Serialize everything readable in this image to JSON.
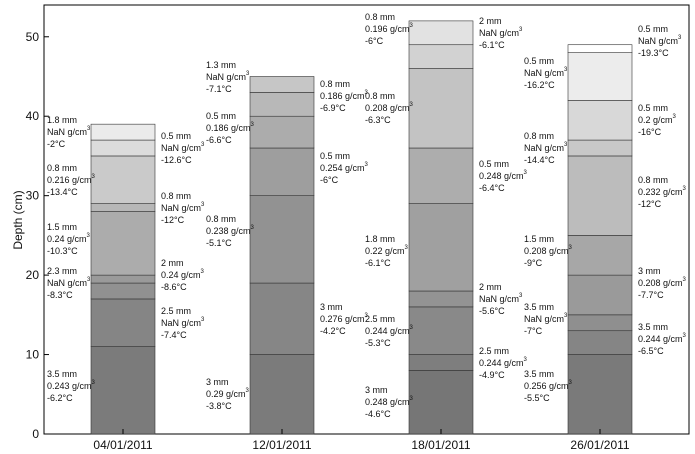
{
  "chart_data": {
    "type": "bar",
    "stacked": true,
    "ylabel": "Depth (cm)",
    "ylim": [
      0,
      54
    ],
    "yticks": [
      0,
      10,
      20,
      30,
      40,
      50
    ],
    "categories": [
      "04/01/2011",
      "12/01/2011",
      "18/01/2011",
      "26/01/2011"
    ],
    "profiles": [
      {
        "date": "04/01/2011",
        "layers": [
          {
            "top": 11,
            "fill": "#7b7b7b"
          },
          {
            "top": 17,
            "fill": "#858585"
          },
          {
            "top": 19,
            "fill": "#919191"
          },
          {
            "top": 20,
            "fill": "#9a9a9a"
          },
          {
            "top": 28,
            "fill": "#acacac"
          },
          {
            "top": 29,
            "fill": "#b7b7b7"
          },
          {
            "top": 35,
            "fill": "#cacaca"
          },
          {
            "top": 37,
            "fill": "#dcdcdc"
          },
          {
            "top": 39,
            "fill": "#ebebeb"
          }
        ],
        "left_labels": [
          {
            "y": 6,
            "lines": [
              "3.5 mm",
              "0.243 g/cm",
              "-6.2°C"
            ]
          },
          {
            "y": 19,
            "lines": [
              "2.3 mm",
              "NaN g/cm",
              "-8.3°C"
            ]
          },
          {
            "y": 24.5,
            "lines": [
              "1.5 mm",
              "0.24 g/cm",
              "-10.3°C"
            ]
          },
          {
            "y": 32,
            "lines": [
              "0.8 mm",
              "0.216 g/cm",
              "-13.4°C"
            ]
          },
          {
            "y": 38,
            "lines": [
              "1.8 mm",
              "NaN g/cm",
              "-2°C"
            ]
          }
        ],
        "right_labels": [
          {
            "y": 14,
            "lines": [
              "2.5 mm",
              "NaN g/cm",
              "-7.4°C"
            ]
          },
          {
            "y": 20,
            "lines": [
              "2 mm",
              "0.24 g/cm",
              "-8.6°C"
            ]
          },
          {
            "y": 28.5,
            "lines": [
              "0.8 mm",
              "NaN g/cm",
              "-12°C"
            ]
          },
          {
            "y": 36,
            "lines": [
              "0.5 mm",
              "NaN g/cm",
              "-12.6°C"
            ]
          }
        ]
      },
      {
        "date": "12/01/2011",
        "layers": [
          {
            "top": 10,
            "fill": "#7b7b7b"
          },
          {
            "top": 19,
            "fill": "#868686"
          },
          {
            "top": 30,
            "fill": "#929292"
          },
          {
            "top": 36,
            "fill": "#9e9e9e"
          },
          {
            "top": 40,
            "fill": "#acacac"
          },
          {
            "top": 43,
            "fill": "#b8b8b8"
          },
          {
            "top": 45,
            "fill": "#c6c6c6"
          }
        ],
        "left_labels": [
          {
            "y": 5,
            "lines": [
              "3 mm",
              "0.29 g/cm",
              "-3.8°C"
            ]
          },
          {
            "y": 25.5,
            "lines": [
              "0.8 mm",
              "0.238 g/cm",
              "-5.1°C"
            ]
          },
          {
            "y": 38.5,
            "lines": [
              "0.5 mm",
              "0.186 g/cm",
              "-6.6°C"
            ]
          },
          {
            "y": 45,
            "lines": [
              "1.3 mm",
              "NaN g/cm",
              "-7.1°C"
            ]
          }
        ],
        "right_labels": [
          {
            "y": 14.5,
            "lines": [
              "3 mm",
              "0.276 g/cm",
              "-4.2°C"
            ]
          },
          {
            "y": 33.5,
            "lines": [
              "0.5 mm",
              "0.254 g/cm",
              "-6°C"
            ]
          },
          {
            "y": 42.5,
            "lines": [
              "0.8 mm",
              "0.186 g/cm",
              "-6.9°C"
            ]
          }
        ]
      },
      {
        "date": "18/01/2011",
        "layers": [
          {
            "top": 8,
            "fill": "#767676"
          },
          {
            "top": 10,
            "fill": "#7e7e7e"
          },
          {
            "top": 16,
            "fill": "#898989"
          },
          {
            "top": 18,
            "fill": "#939393"
          },
          {
            "top": 29,
            "fill": "#a0a0a0"
          },
          {
            "top": 36,
            "fill": "#adadad"
          },
          {
            "top": 46,
            "fill": "#c3c3c3"
          },
          {
            "top": 49,
            "fill": "#d2d2d2"
          },
          {
            "top": 52,
            "fill": "#e2e2e2"
          }
        ],
        "left_labels": [
          {
            "y": 4,
            "lines": [
              "3 mm",
              "0.248 g/cm",
              "-4.6°C"
            ]
          },
          {
            "y": 13,
            "lines": [
              "2.5 mm",
              "0.244 g/cm",
              "-5.3°C"
            ]
          },
          {
            "y": 23,
            "lines": [
              "1.8 mm",
              "0.22 g/cm",
              "-6.1°C"
            ]
          },
          {
            "y": 41,
            "lines": [
              "0.8 mm",
              "0.208 g/cm",
              "-6.3°C"
            ]
          },
          {
            "y": 51,
            "lines": [
              "0.8 mm",
              "0.196 g/cm",
              "-6°C"
            ]
          }
        ],
        "right_labels": [
          {
            "y": 9,
            "lines": [
              "2.5 mm",
              "0.244 g/cm",
              "-4.9°C"
            ]
          },
          {
            "y": 17,
            "lines": [
              "2 mm",
              "NaN g/cm",
              "-5.6°C"
            ]
          },
          {
            "y": 32.5,
            "lines": [
              "0.5 mm",
              "0.248 g/cm",
              "-6.4°C"
            ]
          },
          {
            "y": 50.5,
            "lines": [
              "2 mm",
              "NaN g/cm",
              "-6.1°C"
            ]
          }
        ]
      },
      {
        "date": "26/01/2011",
        "layers": [
          {
            "top": 10,
            "fill": "#7a7a7a"
          },
          {
            "top": 13,
            "fill": "#858585"
          },
          {
            "top": 15,
            "fill": "#8f8f8f"
          },
          {
            "top": 20,
            "fill": "#9a9a9a"
          },
          {
            "top": 25,
            "fill": "#a7a7a7"
          },
          {
            "top": 35,
            "fill": "#bcbcbc"
          },
          {
            "top": 37,
            "fill": "#c8c8c8"
          },
          {
            "top": 42,
            "fill": "#d8d8d8"
          },
          {
            "top": 48,
            "fill": "#ececec"
          },
          {
            "top": 49,
            "fill": "#ffffff"
          }
        ],
        "left_labels": [
          {
            "y": 6,
            "lines": [
              "3.5 mm",
              "0.256 g/cm",
              "-5.5°C"
            ]
          },
          {
            "y": 14.5,
            "lines": [
              "3.5 mm",
              "NaN g/cm",
              "-7°C"
            ]
          },
          {
            "y": 23,
            "lines": [
              "1.5 mm",
              "0.208 g/cm",
              "-9°C"
            ]
          },
          {
            "y": 36,
            "lines": [
              "0.8 mm",
              "NaN g/cm",
              "-14.4°C"
            ]
          },
          {
            "y": 45.5,
            "lines": [
              "0.5 mm",
              "NaN g/cm",
              "-16.2°C"
            ]
          }
        ],
        "right_labels": [
          {
            "y": 12,
            "lines": [
              "3.5 mm",
              "0.244 g/cm",
              "-6.5°C"
            ]
          },
          {
            "y": 19,
            "lines": [
              "3 mm",
              "0.208 g/cm",
              "-7.7°C"
            ]
          },
          {
            "y": 30.5,
            "lines": [
              "0.8 mm",
              "0.232 g/cm",
              "-12°C"
            ]
          },
          {
            "y": 39.5,
            "lines": [
              "0.5 mm",
              "0.2 g/cm",
              "-16°C"
            ]
          },
          {
            "y": 49.5,
            "lines": [
              "0.5 mm",
              "NaN g/cm",
              "-19.3°C"
            ]
          }
        ]
      }
    ]
  }
}
